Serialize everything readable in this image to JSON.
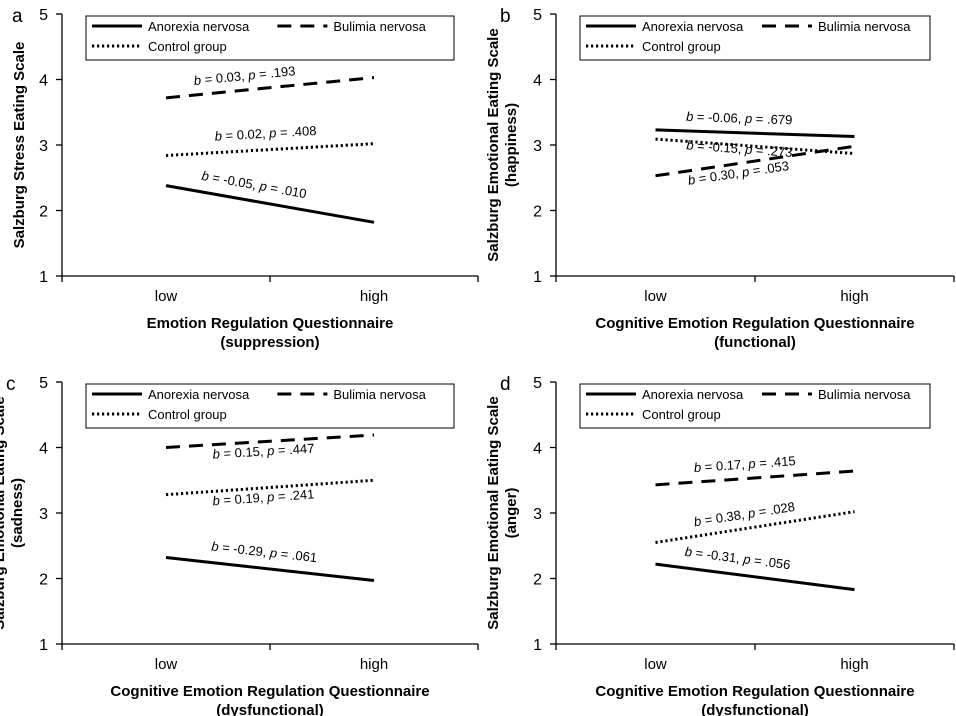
{
  "chart_data": [
    {
      "panel": "a",
      "type": "line",
      "categories": [
        "low",
        "high"
      ],
      "xlabel": [
        "Emotion Regulation Questionnaire",
        "(suppression)"
      ],
      "ylabel": "Salzburg Stress Eating Scale",
      "ylim": [
        1,
        5
      ],
      "yticks": [
        1,
        2,
        3,
        4,
        5
      ],
      "legend": "top",
      "series": [
        {
          "name": "Anorexia nervosa",
          "style": "solid",
          "values": [
            2.38,
            1.82
          ],
          "annotation": "b = -0.05, p = .010"
        },
        {
          "name": "Bulimia nervosa",
          "style": "dashed",
          "values": [
            3.72,
            4.03
          ],
          "annotation": "b = 0.03, p = .193"
        },
        {
          "name": "Control group",
          "style": "dotted",
          "values": [
            2.84,
            3.02
          ],
          "annotation": "b = 0.02, p = .408"
        }
      ]
    },
    {
      "panel": "b",
      "type": "line",
      "categories": [
        "low",
        "high"
      ],
      "xlabel": [
        "Cognitive Emotion Regulation Questionnaire",
        "(functional)"
      ],
      "ylabel": [
        "Salzburg Emotional Eating Scale",
        "(happiness)"
      ],
      "ylim": [
        1,
        5
      ],
      "yticks": [
        1,
        2,
        3,
        4,
        5
      ],
      "legend": "top",
      "series": [
        {
          "name": "Anorexia nervosa",
          "style": "solid",
          "values": [
            3.23,
            3.13
          ],
          "annotation": "b = -0.06, p = .679"
        },
        {
          "name": "Bulimia nervosa",
          "style": "dashed",
          "values": [
            2.53,
            2.98
          ],
          "annotation": "b = 0.30, p = .053"
        },
        {
          "name": "Control group",
          "style": "dotted",
          "values": [
            3.09,
            2.87
          ],
          "annotation": "b = -0.15, p = .273"
        }
      ]
    },
    {
      "panel": "c",
      "type": "line",
      "categories": [
        "low",
        "high"
      ],
      "xlabel": [
        "Cognitive Emotion Regulation Questionnaire",
        "(dysfunctional)"
      ],
      "ylabel": [
        "Salzburg Emotional Eating Scale",
        "(sadness)"
      ],
      "ylim": [
        1,
        5
      ],
      "yticks": [
        1,
        2,
        3,
        4,
        5
      ],
      "legend": "top",
      "series": [
        {
          "name": "Anorexia nervosa",
          "style": "solid",
          "values": [
            2.32,
            1.97
          ],
          "annotation": "b = -0.29, p = .061"
        },
        {
          "name": "Bulimia nervosa",
          "style": "dashed",
          "values": [
            4.0,
            4.19
          ],
          "annotation": "b = 0.15, p = .447"
        },
        {
          "name": "Control group",
          "style": "dotted",
          "values": [
            3.28,
            3.5
          ],
          "annotation": "b = 0.19, p = .241"
        }
      ]
    },
    {
      "panel": "d",
      "type": "line",
      "categories": [
        "low",
        "high"
      ],
      "xlabel": [
        "Cognitive Emotion Regulation Questionnaire",
        "(dysfunctional)"
      ],
      "ylabel": [
        "Salzburg Emotional Eating Scale",
        "(anger)"
      ],
      "ylim": [
        1,
        5
      ],
      "yticks": [
        1,
        2,
        3,
        4,
        5
      ],
      "legend": "top",
      "series": [
        {
          "name": "Anorexia nervosa",
          "style": "solid",
          "values": [
            2.22,
            1.83
          ],
          "annotation": "b = -0.31, p = .056"
        },
        {
          "name": "Bulimia nervosa",
          "style": "dashed",
          "values": [
            3.43,
            3.64
          ],
          "annotation": "b = 0.17, p = .415"
        },
        {
          "name": "Control group",
          "style": "dotted",
          "values": [
            2.55,
            3.02
          ],
          "annotation": "b = 0.38, p = .028"
        }
      ]
    }
  ]
}
